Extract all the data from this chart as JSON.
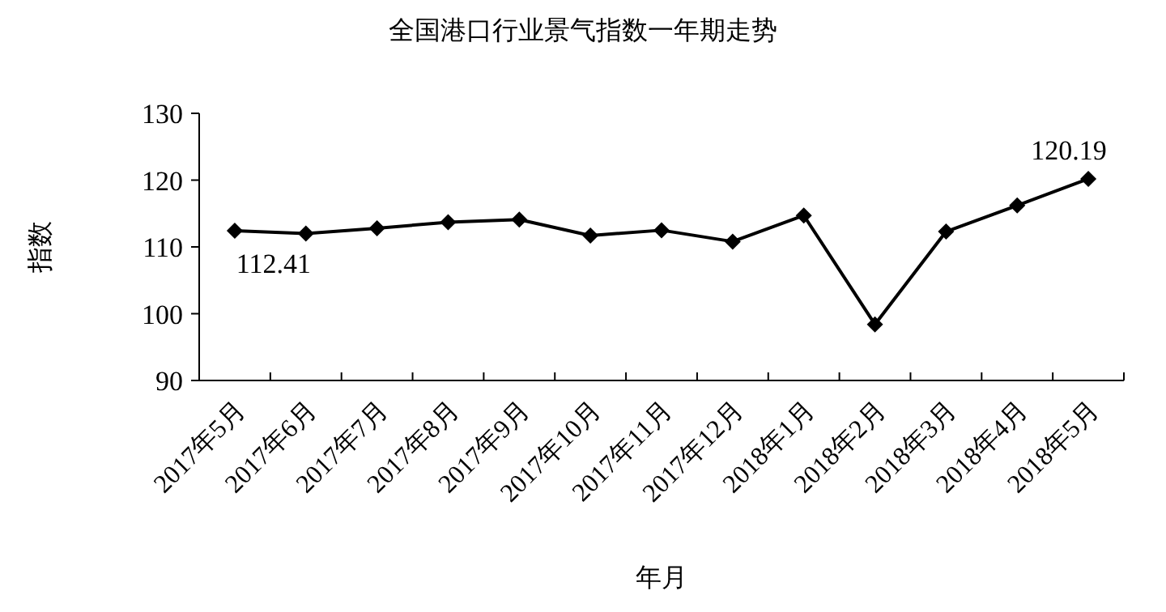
{
  "chart_data": {
    "type": "line",
    "title": "全国港口行业景气指数一年期走势",
    "xlabel": "年月",
    "ylabel": "指数",
    "categories": [
      "2017年5月",
      "2017年6月",
      "2017年7月",
      "2017年8月",
      "2017年9月",
      "2017年10月",
      "2017年11月",
      "2017年12月",
      "2018年1月",
      "2018年2月",
      "2018年3月",
      "2018年4月",
      "2018年5月"
    ],
    "values": [
      112.41,
      112.0,
      112.8,
      113.7,
      114.1,
      111.7,
      112.5,
      110.8,
      114.7,
      98.4,
      112.3,
      116.2,
      120.19
    ],
    "value_labels": [
      "112.41",
      null,
      null,
      null,
      null,
      null,
      null,
      null,
      null,
      null,
      null,
      null,
      "120.19"
    ],
    "color": "#000000",
    "marker": "diamond",
    "line_style": "solid",
    "ylim": [
      90,
      130
    ],
    "yticks": [
      90,
      100,
      110,
      120,
      130
    ]
  }
}
